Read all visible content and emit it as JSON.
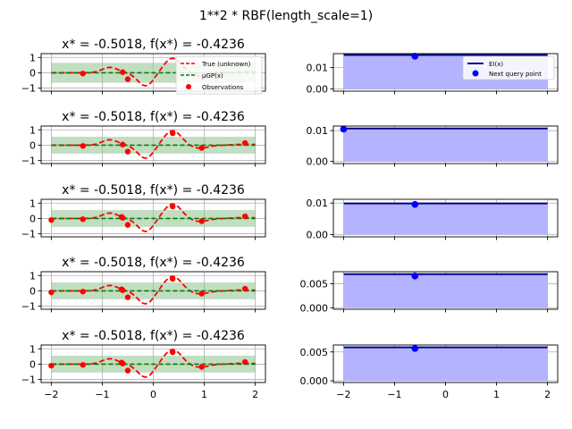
{
  "figure": {
    "suptitle": "1**2 * RBF(length_scale=1)"
  },
  "colors": {
    "true_curve": "#ff0000",
    "gp_mean": "#008000",
    "gp_band": "#8fc28f",
    "observation": "#ff0000",
    "ei_line": "#00008b",
    "ei_fill": "#b3b3ff",
    "next_point": "#0000ff",
    "grid": "#b0b0b0"
  },
  "chart_data": [
    {
      "type": "line",
      "panel": "gp-row-1",
      "title": "x* = -0.5018, f(x*) = -0.4236",
      "xlim": [
        -2.2,
        2.2
      ],
      "ylim": [
        -1.2,
        1.25
      ],
      "yticks": [
        -1,
        0,
        1
      ],
      "xticks": [
        -2,
        -1,
        0,
        1,
        2
      ],
      "show_xticklabels": false,
      "grid": true,
      "band": {
        "mean": 0.0,
        "halfwidth": 0.65
      },
      "observations": {
        "x": [
          -1.38,
          -0.6,
          -0.5
        ],
        "y": [
          -0.05,
          0.04,
          -0.42
        ]
      },
      "legend": {
        "placement": "upper right",
        "entries": [
          {
            "label": "True (unknown)",
            "style": "dashed-red"
          },
          {
            "label": "μ_GP(x)",
            "style": "dashed-green"
          },
          {
            "label": "Observations",
            "style": "red-dot"
          }
        ]
      }
    },
    {
      "type": "line",
      "panel": "gp-row-2",
      "title": "x* = -0.5018, f(x*) = -0.4236",
      "xlim": [
        -2.2,
        2.2
      ],
      "ylim": [
        -1.2,
        1.25
      ],
      "yticks": [
        -1,
        0,
        1
      ],
      "xticks": [
        -2,
        -1,
        0,
        1,
        2
      ],
      "show_xticklabels": false,
      "grid": true,
      "band": {
        "mean": 0.0,
        "halfwidth": 0.55
      },
      "observations": {
        "x": [
          -1.38,
          -0.6,
          -0.5,
          0.38,
          0.95,
          1.8
        ],
        "y": [
          -0.05,
          0.04,
          -0.42,
          0.78,
          -0.18,
          0.14
        ]
      }
    },
    {
      "type": "line",
      "panel": "gp-row-3",
      "title": "x* = -0.5018, f(x*) = -0.4236",
      "xlim": [
        -2.2,
        2.2
      ],
      "ylim": [
        -1.2,
        1.25
      ],
      "yticks": [
        -1,
        0,
        1
      ],
      "xticks": [
        -2,
        -1,
        0,
        1,
        2
      ],
      "show_xticklabels": false,
      "grid": true,
      "band": {
        "mean": 0.0,
        "halfwidth": 0.55
      },
      "observations": {
        "x": [
          -2.0,
          -1.38,
          -0.62,
          -0.6,
          -0.5,
          0.38,
          0.95,
          1.8
        ],
        "y": [
          -0.1,
          -0.05,
          0.1,
          0.04,
          -0.42,
          0.78,
          -0.18,
          0.14
        ]
      }
    },
    {
      "type": "line",
      "panel": "gp-row-4",
      "title": "x* = -0.5018, f(x*) = -0.4236",
      "xlim": [
        -2.2,
        2.2
      ],
      "ylim": [
        -1.2,
        1.25
      ],
      "yticks": [
        -1,
        0,
        1
      ],
      "xticks": [
        -2,
        -1,
        0,
        1,
        2
      ],
      "show_xticklabels": false,
      "grid": true,
      "band": {
        "mean": 0.0,
        "halfwidth": 0.55
      },
      "observations": {
        "x": [
          -2.0,
          -1.38,
          -0.62,
          -0.6,
          -0.5,
          0.38,
          0.95,
          1.8
        ],
        "y": [
          -0.1,
          -0.05,
          0.1,
          0.04,
          -0.42,
          0.78,
          -0.18,
          0.14
        ]
      }
    },
    {
      "type": "line",
      "panel": "gp-row-5",
      "title": "x* = -0.5018, f(x*) = -0.4236",
      "xlim": [
        -2.2,
        2.2
      ],
      "ylim": [
        -1.2,
        1.25
      ],
      "yticks": [
        -1,
        0,
        1
      ],
      "xticks": [
        -2,
        -1,
        0,
        1,
        2
      ],
      "show_xticklabels": true,
      "grid": true,
      "band": {
        "mean": 0.0,
        "halfwidth": 0.55
      },
      "observations": {
        "x": [
          -2.0,
          -1.38,
          -0.62,
          -0.6,
          -0.5,
          0.38,
          0.95,
          1.8
        ],
        "y": [
          -0.1,
          -0.05,
          0.1,
          0.04,
          -0.42,
          0.78,
          -0.18,
          0.14
        ]
      }
    },
    {
      "type": "area",
      "panel": "ei-row-1",
      "xlim": [
        -2.2,
        2.2
      ],
      "ylim": [
        -0.001,
        0.0165
      ],
      "yticks": [
        0.0,
        0.01
      ],
      "ytick_labels": [
        "0.00",
        "0.01"
      ],
      "xticks": [
        -2,
        -1,
        0,
        1,
        2
      ],
      "show_xticklabels": false,
      "grid": true,
      "ei_level": 0.0159,
      "next_point": {
        "x": -0.6,
        "y": 0.0153
      },
      "legend": {
        "placement": "upper right",
        "entries": [
          {
            "label": "EI(x)",
            "style": "line-darkblue"
          },
          {
            "label": "Next query point",
            "style": "blue-dot"
          }
        ]
      }
    },
    {
      "type": "area",
      "panel": "ei-row-2",
      "xlim": [
        -2.2,
        2.2
      ],
      "ylim": [
        -0.0007,
        0.0115
      ],
      "yticks": [
        0.0,
        0.01
      ],
      "ytick_labels": [
        "0.00",
        "0.01"
      ],
      "xticks": [
        -2,
        -1,
        0,
        1,
        2
      ],
      "show_xticklabels": false,
      "grid": true,
      "ei_level": 0.0107,
      "next_point": {
        "x": -2.0,
        "y": 0.0105
      }
    },
    {
      "type": "area",
      "panel": "ei-row-3",
      "xlim": [
        -2.2,
        2.2
      ],
      "ylim": [
        -0.0007,
        0.0112
      ],
      "yticks": [
        0.0,
        0.01
      ],
      "ytick_labels": [
        "0.00",
        "0.01"
      ],
      "xticks": [
        -2,
        -1,
        0,
        1,
        2
      ],
      "show_xticklabels": false,
      "grid": true,
      "ei_level": 0.0099,
      "next_point": {
        "x": -0.6,
        "y": 0.0096
      }
    },
    {
      "type": "area",
      "panel": "ei-row-4",
      "xlim": [
        -2.2,
        2.2
      ],
      "ylim": [
        -0.0003,
        0.0075
      ],
      "yticks": [
        0.0,
        0.005
      ],
      "ytick_labels": [
        "0.000",
        "0.005"
      ],
      "xticks": [
        -2,
        -1,
        0,
        1,
        2
      ],
      "show_xticklabels": false,
      "grid": true,
      "ei_level": 0.007,
      "next_point": {
        "x": -0.6,
        "y": 0.0066
      }
    },
    {
      "type": "area",
      "panel": "ei-row-5",
      "xlim": [
        -2.2,
        2.2
      ],
      "ylim": [
        -0.0003,
        0.0062
      ],
      "yticks": [
        0.0,
        0.005
      ],
      "ytick_labels": [
        "0.000",
        "0.005"
      ],
      "xticks": [
        -2,
        -1,
        0,
        1,
        2
      ],
      "show_xticklabels": true,
      "grid": true,
      "ei_level": 0.0058,
      "next_point": {
        "x": -0.6,
        "y": 0.0056
      }
    }
  ]
}
